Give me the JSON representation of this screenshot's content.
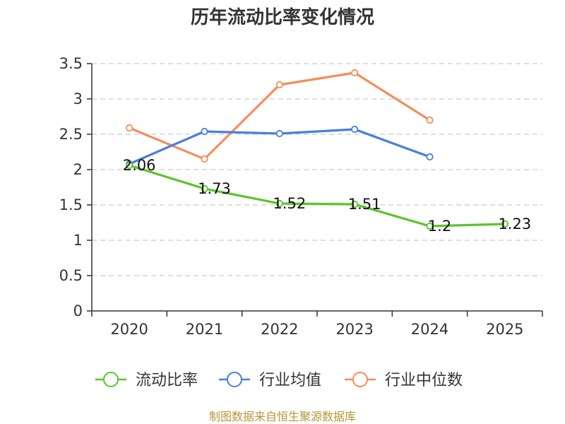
{
  "chart_data": {
    "type": "line",
    "title": "历年流动比率变化情况",
    "categories": [
      "2020",
      "2021",
      "2022",
      "2023",
      "2024",
      "2025"
    ],
    "y_ticks": [
      "0",
      "0.5",
      "1",
      "1.5",
      "2",
      "2.5",
      "3",
      "3.5"
    ],
    "ylim": [
      0,
      3.5
    ],
    "grid": true,
    "legend_position": "bottom",
    "series": [
      {
        "name": "流动比率",
        "color": "#5cc42b",
        "values": [
          2.06,
          1.73,
          1.52,
          1.51,
          1.2,
          1.23
        ],
        "labels": [
          "2.06",
          "1.73",
          "1.52",
          "1.51",
          "1.2",
          "1.23"
        ]
      },
      {
        "name": "行业均值",
        "color": "#4a7fd8",
        "values": [
          2.08,
          2.54,
          2.51,
          2.57,
          2.18,
          null
        ]
      },
      {
        "name": "行业中位数",
        "color": "#f78d5a",
        "values": [
          2.59,
          2.15,
          3.2,
          3.37,
          2.7,
          null
        ]
      }
    ],
    "source": "制图数据来自恒生聚源数据库"
  }
}
